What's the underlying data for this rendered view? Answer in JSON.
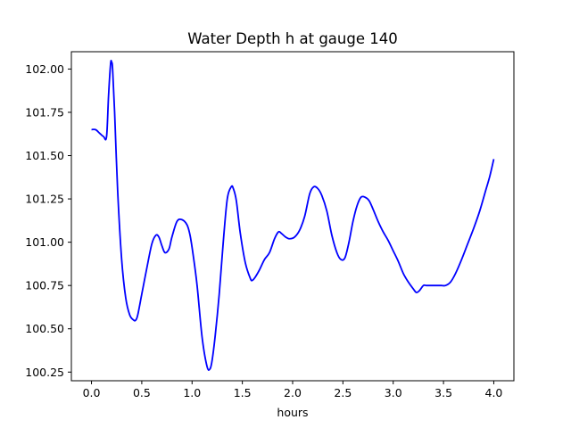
{
  "chart_data": {
    "type": "line",
    "title": "Water Depth h at gauge 140",
    "xlabel": "hours",
    "ylabel": "",
    "xlim": [
      -0.2,
      4.2
    ],
    "ylim": [
      100.2,
      102.1
    ],
    "xticks": [
      0.0,
      0.5,
      1.0,
      1.5,
      2.0,
      2.5,
      3.0,
      3.5,
      4.0
    ],
    "xtick_labels": [
      "0.0",
      "0.5",
      "1.0",
      "1.5",
      "2.0",
      "2.5",
      "3.0",
      "3.5",
      "4.0"
    ],
    "yticks": [
      100.25,
      100.5,
      100.75,
      101.0,
      101.25,
      101.5,
      101.75,
      102.0
    ],
    "ytick_labels": [
      "100.25",
      "100.50",
      "100.75",
      "101.00",
      "101.25",
      "101.50",
      "101.75",
      "102.00"
    ],
    "grid": false,
    "series": [
      {
        "color": "#0000ff",
        "x": [
          0.0,
          0.04,
          0.08,
          0.12,
          0.15,
          0.17,
          0.19,
          0.2,
          0.21,
          0.23,
          0.26,
          0.3,
          0.34,
          0.38,
          0.42,
          0.44,
          0.46,
          0.5,
          0.55,
          0.6,
          0.64,
          0.67,
          0.7,
          0.73,
          0.77,
          0.8,
          0.85,
          0.9,
          0.95,
          0.98,
          1.01,
          1.05,
          1.1,
          1.15,
          1.18,
          1.2,
          1.23,
          1.27,
          1.31,
          1.35,
          1.39,
          1.41,
          1.44,
          1.48,
          1.53,
          1.58,
          1.6,
          1.63,
          1.67,
          1.72,
          1.77,
          1.82,
          1.86,
          1.89,
          1.93,
          1.97,
          2.02,
          2.07,
          2.12,
          2.17,
          2.21,
          2.25,
          2.29,
          2.34,
          2.39,
          2.44,
          2.48,
          2.52,
          2.56,
          2.6,
          2.64,
          2.68,
          2.72,
          2.76,
          2.8,
          2.85,
          2.9,
          2.95,
          3.0,
          3.05,
          3.1,
          3.15,
          3.2,
          3.23,
          3.26,
          3.3,
          3.33,
          3.38,
          3.43,
          3.48,
          3.52,
          3.57,
          3.62,
          3.68,
          3.74,
          3.8,
          3.86,
          3.92,
          3.96,
          4.0
        ],
        "y": [
          101.65,
          101.65,
          101.63,
          101.61,
          101.61,
          101.85,
          102.03,
          102.04,
          102.0,
          101.75,
          101.3,
          100.9,
          100.68,
          100.58,
          100.55,
          100.55,
          100.58,
          100.7,
          100.85,
          100.99,
          101.04,
          101.03,
          100.98,
          100.94,
          100.96,
          101.03,
          101.12,
          101.13,
          101.1,
          101.04,
          100.93,
          100.75,
          100.45,
          100.28,
          100.27,
          100.32,
          100.46,
          100.7,
          101.0,
          101.25,
          101.32,
          101.31,
          101.24,
          101.05,
          100.88,
          100.79,
          100.78,
          100.8,
          100.84,
          100.9,
          100.94,
          101.02,
          101.06,
          101.05,
          101.03,
          101.02,
          101.03,
          101.07,
          101.15,
          101.28,
          101.32,
          101.31,
          101.27,
          101.18,
          101.04,
          100.94,
          100.9,
          100.91,
          101.0,
          101.12,
          101.21,
          101.26,
          101.26,
          101.24,
          101.19,
          101.12,
          101.06,
          101.01,
          100.95,
          100.89,
          100.82,
          100.77,
          100.73,
          100.71,
          100.72,
          100.75,
          100.75,
          100.75,
          100.75,
          100.75,
          100.75,
          100.77,
          100.82,
          100.9,
          100.99,
          101.08,
          101.18,
          101.3,
          101.38,
          101.48
        ]
      }
    ]
  }
}
